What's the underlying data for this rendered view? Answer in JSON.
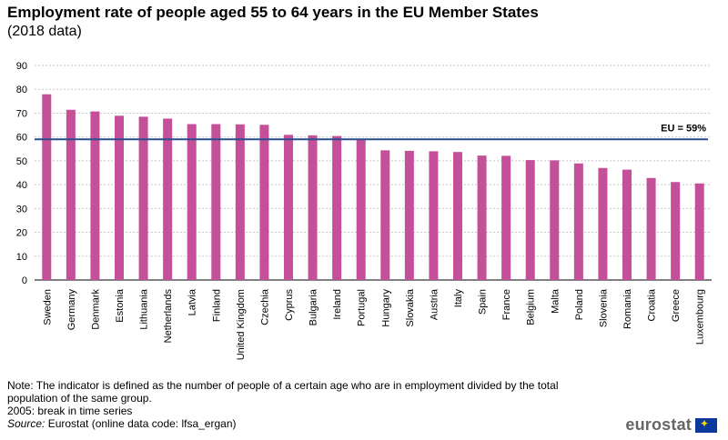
{
  "title": "Employment rate of people aged 55 to 64 years in the EU Member States",
  "subtitle": "(2018 data)",
  "chart_data": {
    "type": "bar",
    "categories": [
      "Sweden",
      "Germany",
      "Denmark",
      "Estonia",
      "Lithuania",
      "Netherlands",
      "Latvia",
      "Finland",
      "United Kingdom",
      "Czechia",
      "Cyprus",
      "Bulgaria",
      "Ireland",
      "Portugal",
      "Hungary",
      "Slovakia",
      "Austria",
      "Italy",
      "Spain",
      "France",
      "Belgium",
      "Malta",
      "Poland",
      "Slovenia",
      "Romania",
      "Croatia",
      "Greece",
      "Luxembourg"
    ],
    "values": [
      77.9,
      71.4,
      70.7,
      68.9,
      68.5,
      67.7,
      65.4,
      65.4,
      65.3,
      65.1,
      60.9,
      60.7,
      60.4,
      59.2,
      54.4,
      54.2,
      54.0,
      53.7,
      52.2,
      52.1,
      50.3,
      50.2,
      48.9,
      47.0,
      46.3,
      42.8,
      41.1,
      40.5
    ],
    "yticks": [
      0,
      10,
      20,
      30,
      40,
      50,
      60,
      70,
      80,
      90
    ],
    "ylim": [
      0,
      90
    ],
    "reference_line": {
      "value": 59,
      "label": "EU = 59%"
    },
    "grid": true,
    "bar_color": "#c4509a",
    "line_color": "#2b4f8c"
  },
  "notes": {
    "line1": "Note: The indicator is defined as the number of people of a certain age who are in employment divided by the total",
    "line2": "population of the same group.",
    "line3": "2005: break in time series",
    "source_label": "Source:",
    "source_text": " Eurostat (online data code: lfsa_ergan)"
  },
  "logo": {
    "text": "eurostat"
  }
}
